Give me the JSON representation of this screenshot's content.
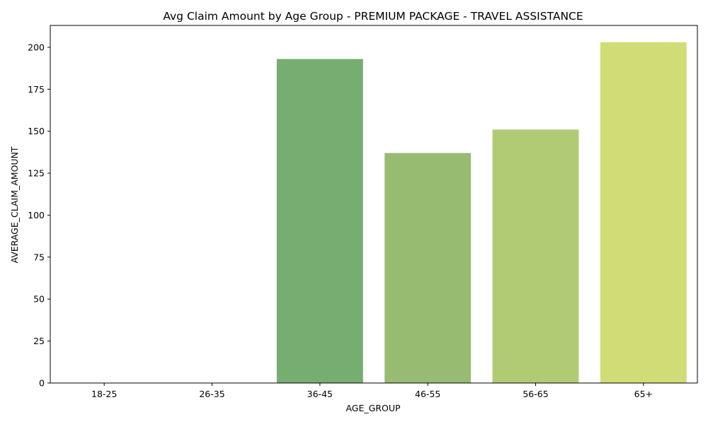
{
  "chart_data": {
    "type": "bar",
    "title": "Avg Claim Amount by Age Group - PREMIUM PACKAGE - TRAVEL ASSISTANCE",
    "xlabel": "AGE_GROUP",
    "ylabel": "AVERAGE_CLAIM_AMOUNT",
    "categories": [
      "18-25",
      "26-35",
      "36-45",
      "46-55",
      "56-65",
      "65+"
    ],
    "values": [
      0,
      0,
      193,
      137,
      151,
      203
    ],
    "colors": [
      "#2e9a5c",
      "#4ea463",
      "#76ad71",
      "#98bb72",
      "#b1cb74",
      "#d1dc76"
    ],
    "ylim": [
      0,
      213
    ],
    "yticks": [
      0,
      25,
      50,
      75,
      100,
      125,
      150,
      175,
      200
    ],
    "grid": false,
    "legend": "none"
  }
}
